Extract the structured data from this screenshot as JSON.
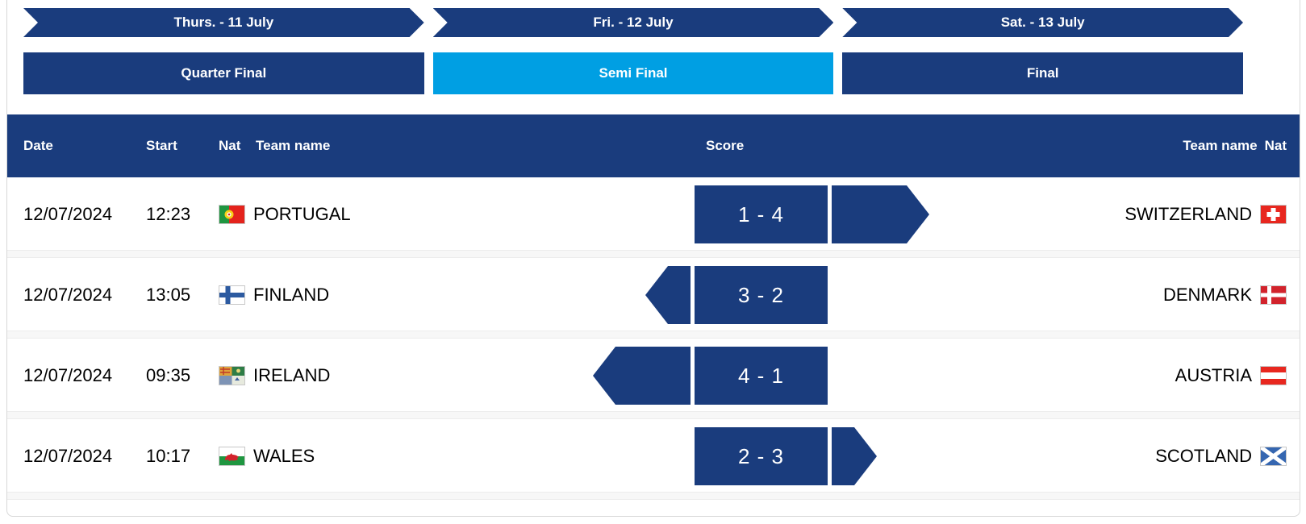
{
  "colors": {
    "navy": "#1a3c7d",
    "active_stage_blue": "#009fe3",
    "row_text": "#000000",
    "header_text": "#ffffff"
  },
  "day_tabs": [
    {
      "label": "Thurs. - 11 July"
    },
    {
      "label": "Fri. - 12 July"
    },
    {
      "label": "Sat. - 13 July"
    }
  ],
  "stage_tabs": [
    {
      "label": "Quarter Final",
      "active": false
    },
    {
      "label": "Semi Final",
      "active": true
    },
    {
      "label": "Final",
      "active": false
    }
  ],
  "table": {
    "headers": {
      "date": "Date",
      "start": "Start",
      "nat_home": "Nat",
      "team_home": "Team name",
      "score": "Score",
      "team_away": "Team name",
      "nat_away": "Nat"
    },
    "matches": [
      {
        "date": "12/07/2024",
        "start": "12:23",
        "home_flag": "portugal",
        "home_team": "PORTUGAL",
        "score": "1 - 4",
        "away_team": "SWITZERLAND",
        "away_flag": "switzerland",
        "winner_arrow": {
          "direction": "right",
          "size": "wide"
        }
      },
      {
        "date": "12/07/2024",
        "start": "13:05",
        "home_flag": "finland",
        "home_team": "FINLAND",
        "score": "3 - 2",
        "away_team": "DENMARK",
        "away_flag": "denmark",
        "winner_arrow": {
          "direction": "left",
          "size": "narrow"
        }
      },
      {
        "date": "12/07/2024",
        "start": "09:35",
        "home_flag": "ireland",
        "home_team": "IRELAND",
        "score": "4 - 1",
        "away_team": "AUSTRIA",
        "away_flag": "austria",
        "winner_arrow": {
          "direction": "left",
          "size": "wide"
        }
      },
      {
        "date": "12/07/2024",
        "start": "10:17",
        "home_flag": "wales",
        "home_team": "WALES",
        "score": "2 - 3",
        "away_team": "SCOTLAND",
        "away_flag": "scotland",
        "winner_arrow": {
          "direction": "right",
          "size": "narrow"
        }
      }
    ]
  }
}
